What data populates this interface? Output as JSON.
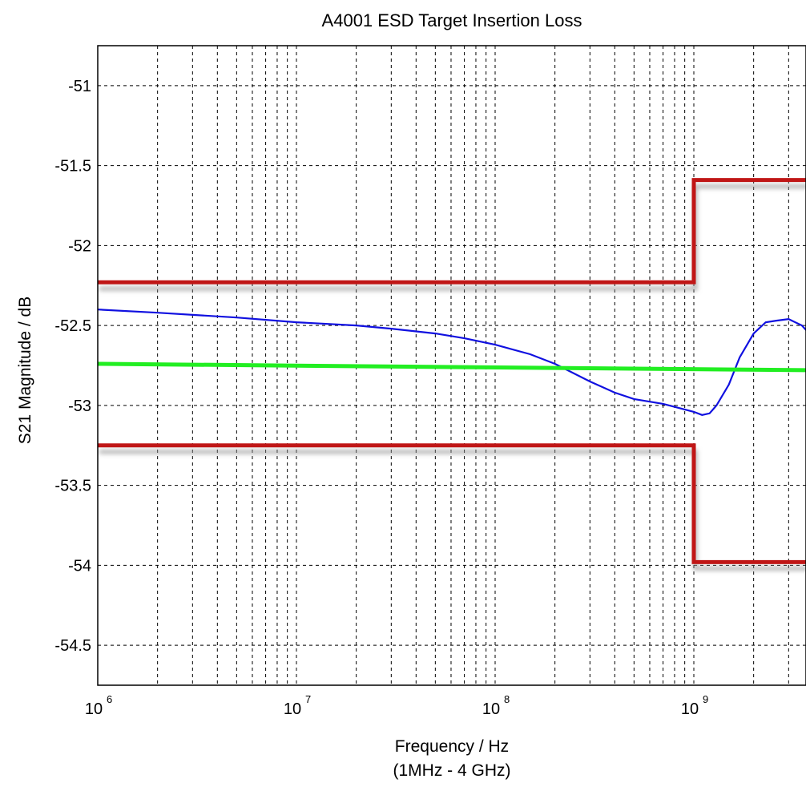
{
  "chart_data": {
    "type": "line",
    "title": "A4001 ESD Target Insertion Loss",
    "xlabel": "Frequency / Hz",
    "xlabel_sub": "(1MHz - 4 GHz)",
    "ylabel": "S21 Magnitude / dB",
    "x_scale": "log",
    "xlim": [
      1000000,
      4000000000
    ],
    "ylim": [
      -54.75,
      -50.75
    ],
    "x_ticks": [
      {
        "value": 1000000,
        "base": "10",
        "exp": "6"
      },
      {
        "value": 10000000,
        "base": "10",
        "exp": "7"
      },
      {
        "value": 100000000,
        "base": "10",
        "exp": "8"
      },
      {
        "value": 1000000000,
        "base": "10",
        "exp": "9"
      }
    ],
    "y_ticks": [
      {
        "value": -51,
        "label": "-51"
      },
      {
        "value": -51.5,
        "label": "-51.5"
      },
      {
        "value": -52,
        "label": "-52"
      },
      {
        "value": -52.5,
        "label": "-52.5"
      },
      {
        "value": -53,
        "label": "-53"
      },
      {
        "value": -53.5,
        "label": "-53.5"
      },
      {
        "value": -54,
        "label": "-54"
      },
      {
        "value": -54.5,
        "label": "-54.5"
      }
    ],
    "grid": true,
    "series": [
      {
        "color": "#1010e0",
        "x": [
          1000000,
          2000000,
          5000000,
          10000000,
          20000000,
          30000000,
          50000000,
          70000000,
          100000000,
          150000000,
          200000000,
          300000000,
          400000000,
          500000000,
          700000000,
          1000000000,
          1100000000,
          1200000000,
          1300000000,
          1500000000,
          1700000000,
          2000000000,
          2300000000,
          2600000000,
          3000000000,
          3500000000,
          4000000000
        ],
        "y": [
          -52.4,
          -52.42,
          -52.45,
          -52.48,
          -52.5,
          -52.52,
          -52.55,
          -52.58,
          -52.62,
          -52.68,
          -52.74,
          -52.85,
          -52.92,
          -52.96,
          -52.99,
          -53.04,
          -53.06,
          -53.05,
          -53.0,
          -52.87,
          -52.7,
          -52.55,
          -52.48,
          -52.47,
          -52.46,
          -52.5,
          -52.58
        ]
      },
      {
        "color": "#22ee22",
        "x": [
          1000000,
          4000000000
        ],
        "y": [
          -52.74,
          -52.78
        ]
      },
      {
        "color": "#c01818",
        "x": [
          1000000,
          1000000000,
          1000000000,
          4000000000
        ],
        "y": [
          -52.23,
          -52.23,
          -51.59,
          -51.59
        ]
      },
      {
        "color": "#c01818",
        "x": [
          1000000,
          1000000000,
          1000000000,
          4000000000
        ],
        "y": [
          -53.25,
          -53.25,
          -53.98,
          -53.98
        ]
      }
    ]
  }
}
